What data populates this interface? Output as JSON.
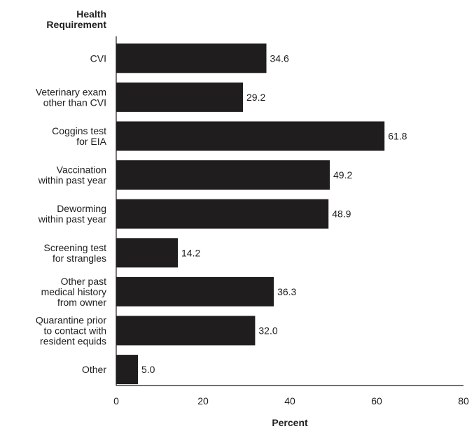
{
  "chart_data": {
    "type": "bar",
    "orientation": "horizontal",
    "categories": [
      [
        "CVI"
      ],
      [
        "Veterinary exam",
        "other than CVI"
      ],
      [
        "Coggins test",
        "for EIA"
      ],
      [
        "Vaccination",
        "within past year"
      ],
      [
        "Deworming",
        "within past year"
      ],
      [
        "Screening test",
        "for strangles"
      ],
      [
        "Other past",
        "medical history",
        "from owner"
      ],
      [
        "Quarantine prior",
        "to contact with",
        "resident equids"
      ],
      [
        "Other"
      ]
    ],
    "values": [
      34.6,
      29.2,
      61.8,
      49.2,
      48.9,
      14.2,
      36.3,
      32.0,
      5.0
    ],
    "value_labels": [
      "34.6",
      "29.2",
      "61.8",
      "49.2",
      "48.9",
      "14.2",
      "36.3",
      "32.0",
      "5.0"
    ],
    "ylabel": [
      "Health",
      "Requirement"
    ],
    "xlabel": "Percent",
    "xlim": [
      0,
      80
    ],
    "xticks": [
      0,
      20,
      40,
      60,
      80
    ],
    "xtick_labels": [
      "0",
      "20",
      "40",
      "60",
      "80"
    ],
    "grid": false,
    "bar_color": "#1f1d1e",
    "text_color": "#1f1d1e"
  }
}
